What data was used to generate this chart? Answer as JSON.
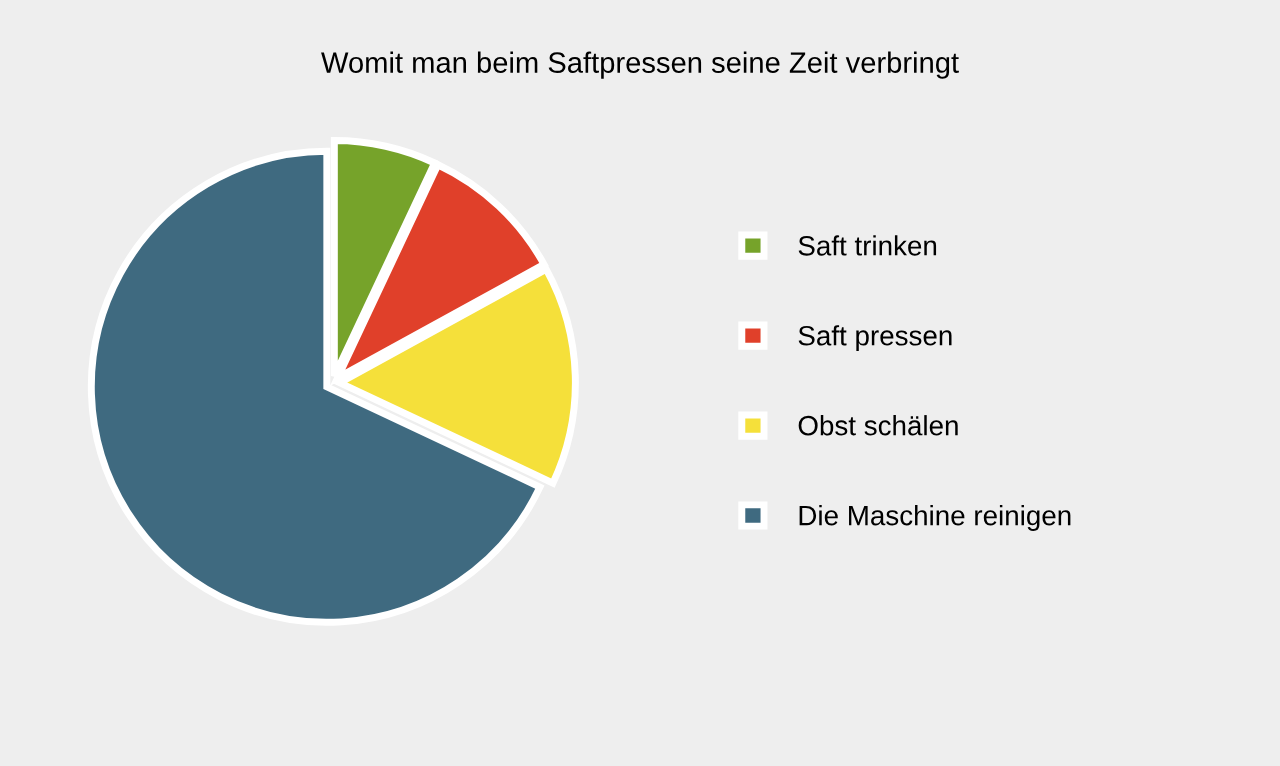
{
  "chart_data": {
    "type": "pie",
    "title": "Womit man beim Saftpressen seine Zeit verbringt",
    "categories": [
      "Saft trinken",
      "Saft pressen",
      "Obst schälen",
      "Die Maschine reinigen"
    ],
    "values": [
      7,
      10,
      15,
      68
    ],
    "colors": [
      "#76a32a",
      "#e0402a",
      "#f5e03a",
      "#3f6a80"
    ],
    "legend": "right"
  }
}
